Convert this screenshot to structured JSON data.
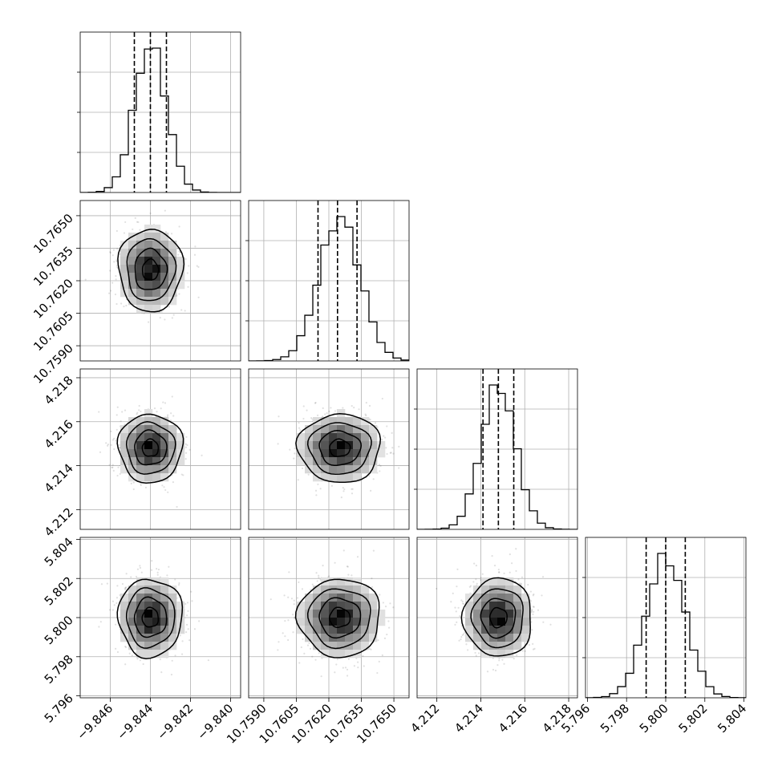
{
  "chart_data": {
    "type": "corner",
    "grid": true,
    "parameters": [
      {
        "mean": -9.844,
        "sigma": 0.0008,
        "range": [
          -9.8475,
          -9.8395
        ],
        "ticks": [
          -9.846,
          -9.844,
          -9.842,
          -9.84
        ],
        "tick_labels": [
          "−9.846",
          "−9.844",
          "−9.842",
          "−9.840"
        ],
        "quantiles": [
          -9.8448,
          -9.844,
          -9.8432
        ]
      },
      {
        "mean": 10.7625,
        "sigma": 0.00095,
        "range": [
          10.7583,
          10.7657
        ],
        "ticks": [
          10.759,
          10.7605,
          10.762,
          10.7635,
          10.765
        ],
        "tick_labels": [
          "10.7590",
          "10.7605",
          "10.7620",
          "10.7635",
          "10.7650"
        ],
        "quantiles": [
          10.7615,
          10.7624,
          10.7633
        ]
      },
      {
        "mean": 4.2148,
        "sigma": 0.00078,
        "range": [
          4.2111,
          4.2184
        ],
        "ticks": [
          4.212,
          4.214,
          4.216,
          4.218
        ],
        "tick_labels": [
          "4.212",
          "4.214",
          "4.216",
          "4.218"
        ],
        "quantiles": [
          4.2141,
          4.2148,
          4.2155
        ]
      },
      {
        "mean": 5.8,
        "sigma": 0.001,
        "range": [
          5.7959,
          5.8041
        ],
        "ticks": [
          5.796,
          5.798,
          5.8,
          5.802,
          5.804
        ],
        "tick_labels": [
          "5.796",
          "5.798",
          "5.800",
          "5.802",
          "5.804"
        ],
        "quantiles": [
          5.799,
          5.8,
          5.801
        ]
      }
    ],
    "contour_levels_sigma": [
      0.5,
      1.0,
      1.5,
      2.0
    ]
  }
}
